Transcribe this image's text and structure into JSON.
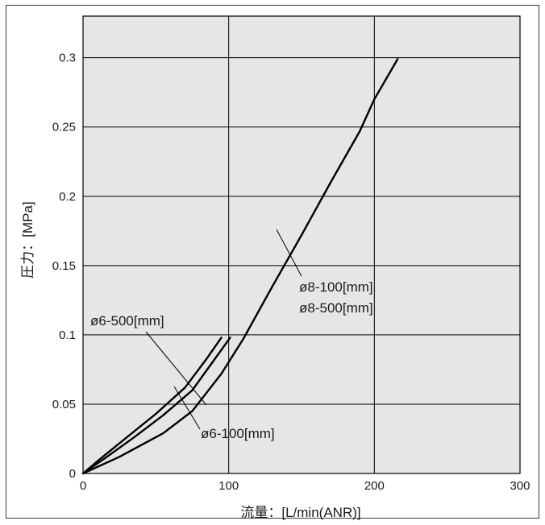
{
  "chart_data": {
    "type": "line",
    "title": "",
    "xlabel": "流量：[L/min(ANR)]",
    "ylabel": "圧力：[MPa]",
    "xlim": [
      0,
      300
    ],
    "ylim": [
      0,
      0.33
    ],
    "grid": true,
    "background_color": "#e6e6e6",
    "line_color": "#000000",
    "x_ticks": [
      "0",
      "100",
      "200",
      "300"
    ],
    "y_ticks": [
      "0",
      "0.05",
      "0.1",
      "0.15",
      "0.2",
      "0.25",
      "0.3"
    ],
    "series": [
      {
        "name": "ø6-500[mm]",
        "x": [
          0,
          10,
          30,
          50,
          70,
          85,
          95
        ],
        "y": [
          0,
          0.009,
          0.026,
          0.043,
          0.062,
          0.083,
          0.098
        ]
      },
      {
        "name": "ø6-100[mm]",
        "x": [
          0,
          15,
          35,
          55,
          75,
          88,
          101
        ],
        "y": [
          0,
          0.011,
          0.026,
          0.042,
          0.06,
          0.079,
          0.098
        ]
      },
      {
        "name": "ø8-100[mm] / ø8-500[mm]",
        "x": [
          0,
          25,
          55,
          75,
          95,
          110,
          130,
          150,
          170,
          190,
          200,
          216
        ],
        "y": [
          0,
          0.012,
          0.029,
          0.045,
          0.072,
          0.097,
          0.135,
          0.172,
          0.21,
          0.247,
          0.27,
          0.299
        ]
      }
    ],
    "annotations": [
      {
        "text": "ø6-500[mm]"
      },
      {
        "text": "ø6-100[mm]"
      },
      {
        "text": "ø8-100[mm]"
      },
      {
        "text": "ø8-500[mm]"
      }
    ]
  }
}
